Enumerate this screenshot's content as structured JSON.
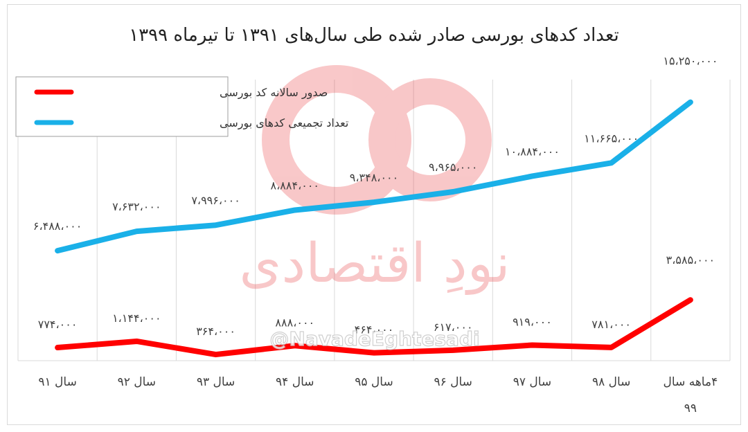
{
  "chart_data": {
    "type": "line",
    "title": "تعداد کدهای بورسی صادر شده طی سال‌های ۱۳۹۱ تا تیرماه ۱۳۹۹",
    "categories": [
      "سال ۹۱",
      "سال ۹۲",
      "سال ۹۳",
      "سال ۹۴",
      "سال ۹۵",
      "سال ۹۶",
      "سال ۹۷",
      "سال ۹۸",
      "۴ماهه سال ۹۹"
    ],
    "series": [
      {
        "name": "صدور سالانه کد بورسی",
        "color": "#ff0000",
        "values": [
          774000,
          1144000,
          364000,
          888000,
          464000,
          617000,
          919000,
          781000,
          3585000
        ],
        "labels": [
          "۷۷۴،۰۰۰",
          "۱،۱۴۴،۰۰۰",
          "۳۶۴،۰۰۰",
          "۸۸۸،۰۰۰",
          "۴۶۴،۰۰۰",
          "۶۱۷،۰۰۰",
          "۹۱۹،۰۰۰",
          "۷۸۱،۰۰۰",
          "۳،۵۸۵،۰۰۰"
        ]
      },
      {
        "name": "تعداد تجمیعی کدهای بورسی",
        "color": "#1ab0e8",
        "values": [
          6488000,
          7632000,
          7996000,
          8884000,
          9348000,
          9965000,
          10884000,
          11665000,
          15250000
        ],
        "labels": [
          "۶،۴۸۸،۰۰۰",
          "۷،۶۳۲،۰۰۰",
          "۷،۹۹۶،۰۰۰",
          "۸،۸۸۴،۰۰۰",
          "۹،۳۴۸،۰۰۰",
          "۹،۹۶۵،۰۰۰",
          "۱۰،۸۸۴،۰۰۰",
          "۱۱،۶۶۵،۰۰۰",
          "۱۵،۲۵۰،۰۰۰"
        ]
      }
    ],
    "ylim": [
      0,
      16000000
    ],
    "grid": "vertical",
    "legend": "top-left"
  },
  "watermark": {
    "text": "نودِ اقتصادی",
    "handle": "@NavadeEghtesadi",
    "color": "#e8383d"
  }
}
